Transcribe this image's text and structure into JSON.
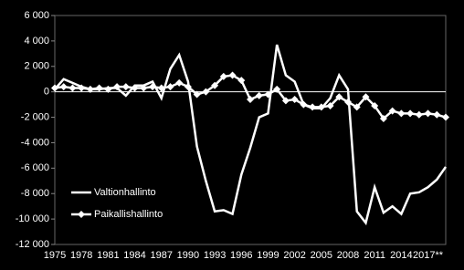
{
  "chart_data": {
    "type": "line",
    "categories": [
      "1975",
      null,
      null,
      "1978",
      null,
      null,
      "1981",
      null,
      null,
      "1984",
      null,
      null,
      "1987",
      null,
      null,
      "1990",
      null,
      null,
      "1993",
      null,
      null,
      "1996",
      null,
      null,
      "1999",
      null,
      null,
      "2002",
      null,
      null,
      "2005",
      null,
      null,
      "2008",
      null,
      null,
      "2011",
      null,
      null,
      "2014",
      null,
      null,
      "2017**",
      null,
      null
    ],
    "series": [
      {
        "name": "Valtionhallinto",
        "color": "#ffffff",
        "marker": false,
        "values": [
          200,
          1000,
          700,
          400,
          200,
          200,
          300,
          300,
          -300,
          500,
          500,
          800,
          -500,
          1800,
          2900,
          800,
          -4300,
          -7000,
          -9400,
          -9300,
          -9600,
          -6500,
          -4400,
          -2000,
          -1700,
          3700,
          1300,
          800,
          -1000,
          -1300,
          -1300,
          -500,
          1300,
          200,
          -9400,
          -10300,
          -7500,
          -9500,
          -9000,
          -9600,
          -8000,
          -7900,
          -7500,
          -6900,
          -5900
        ]
      },
      {
        "name": "Paikallishallinto",
        "color": "#ffffff",
        "marker": true,
        "values": [
          300,
          400,
          300,
          300,
          200,
          300,
          200,
          400,
          400,
          300,
          300,
          400,
          300,
          400,
          700,
          400,
          -200,
          0,
          500,
          1200,
          1300,
          900,
          -600,
          -300,
          -200,
          200,
          -700,
          -600,
          -1000,
          -1200,
          -1200,
          -1100,
          -400,
          -800,
          -1200,
          -400,
          -1100,
          -2100,
          -1500,
          -1700,
          -1700,
          -1800,
          -1700,
          -1800,
          -2000
        ]
      }
    ],
    "ylim": [
      -12000,
      6000
    ],
    "yticks": [
      {
        "value": -12000,
        "label": "-12 000"
      },
      {
        "value": -10000,
        "label": "-10 000"
      },
      {
        "value": -8000,
        "label": "-8 000"
      },
      {
        "value": -6000,
        "label": "-6 000"
      },
      {
        "value": -4000,
        "label": "-4 000"
      },
      {
        "value": -2000,
        "label": "-2 000"
      },
      0,
      {
        "value": 2000,
        "label": "2 000"
      },
      {
        "value": 4000,
        "label": "4 000"
      },
      {
        "value": 6000,
        "label": "6 000"
      }
    ]
  }
}
